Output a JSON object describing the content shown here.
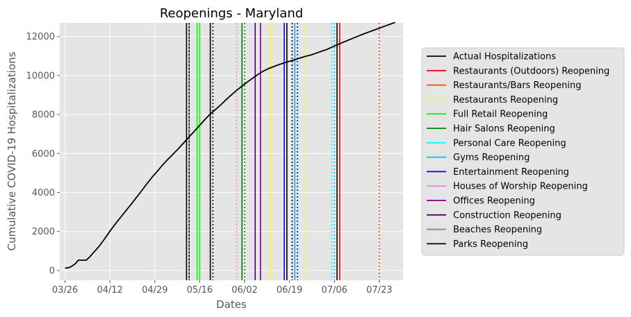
{
  "chart_data": {
    "type": "line",
    "title": "Reopenings - Maryland",
    "xlabel": "Dates",
    "ylabel": "Cumulative COVID-19 Hospitalizations",
    "x_ticks": [
      "03/26",
      "04/12",
      "04/29",
      "05/16",
      "06/02",
      "06/19",
      "07/06",
      "07/23"
    ],
    "y_ticks": [
      0,
      2000,
      4000,
      6000,
      8000,
      10000,
      12000
    ],
    "ylim": [
      -500,
      12700
    ],
    "xlim": [
      "03/24",
      "08/01"
    ],
    "grid": true,
    "legend_position": "outside-right",
    "series": [
      {
        "name": "Actual Hospitalizations",
        "color": "#000000",
        "x": [
          "03/26",
          "03/27",
          "03/28",
          "03/29",
          "03/30",
          "03/31",
          "04/01",
          "04/02",
          "04/03",
          "04/04",
          "04/05",
          "04/06",
          "04/07",
          "04/08",
          "04/09",
          "04/10",
          "04/11",
          "04/12",
          "04/14",
          "04/16",
          "04/18",
          "04/20",
          "04/22",
          "04/24",
          "04/26",
          "04/28",
          "04/30",
          "05/02",
          "05/04",
          "05/06",
          "05/08",
          "05/10",
          "05/12",
          "05/14",
          "05/16",
          "05/18",
          "05/20",
          "05/22",
          "05/24",
          "05/26",
          "05/28",
          "05/30",
          "06/01",
          "06/03",
          "06/05",
          "06/07",
          "06/09",
          "06/11",
          "06/13",
          "06/15",
          "06/17",
          "06/19",
          "06/21",
          "06/23",
          "06/25",
          "06/27",
          "06/29",
          "07/01",
          "07/03",
          "07/05",
          "07/07",
          "07/09",
          "07/11",
          "07/13",
          "07/15",
          "07/17",
          "07/19",
          "07/21",
          "07/23",
          "07/25",
          "07/27",
          "07/29"
        ],
        "y": [
          130,
          130,
          180,
          260,
          360,
          530,
          530,
          530,
          530,
          650,
          800,
          950,
          1100,
          1260,
          1440,
          1630,
          1820,
          2020,
          2380,
          2720,
          3060,
          3390,
          3740,
          4090,
          4450,
          4790,
          5100,
          5420,
          5710,
          5980,
          6260,
          6560,
          6850,
          7150,
          7450,
          7750,
          8030,
          8260,
          8500,
          8760,
          9010,
          9240,
          9460,
          9660,
          9860,
          10050,
          10220,
          10350,
          10460,
          10560,
          10650,
          10730,
          10810,
          10900,
          10980,
          11050,
          11140,
          11240,
          11330,
          11450,
          11570,
          11690,
          11800,
          11910,
          12020,
          12130,
          12230,
          12330,
          12430,
          12530,
          12630,
          12720
        ]
      }
    ],
    "reopenings": [
      {
        "name": "Restaurants (Outdoors) Reopening",
        "color": "#ff0000",
        "style": "solid",
        "dates": [
          "07/08"
        ]
      },
      {
        "name": "Restaurants/Bars Reopening",
        "color": "#ff4500",
        "style": "dotted",
        "dates": [
          "07/23"
        ]
      },
      {
        "name": "Restaurants Reopening",
        "color": "#ffff00",
        "style": "mixed",
        "dates": [
          "06/12",
          "06/25"
        ]
      },
      {
        "name": "Full Retail Reopening",
        "color": "#00ff00",
        "style": "solid",
        "dates": [
          "05/15",
          "05/16"
        ]
      },
      {
        "name": "Hair Salons Reopening",
        "color": "#008000",
        "style": "mixed",
        "dates": [
          "06/01",
          "06/02"
        ]
      },
      {
        "name": "Personal Care Reopening",
        "color": "#00ffff",
        "style": "dotted",
        "dates": [
          "06/20",
          "07/05"
        ]
      },
      {
        "name": "Gyms Reopening",
        "color": "#00bfff",
        "style": "mixed",
        "dates": [
          "06/21",
          "07/06"
        ]
      },
      {
        "name": "Entertainment Reopening",
        "color": "#0000ff",
        "style": "mixed",
        "dates": [
          "06/17",
          "06/22"
        ]
      },
      {
        "name": "Houses of Worship Reopening",
        "color": "#ee82ee",
        "style": "dotted",
        "dates": [
          "05/30"
        ]
      },
      {
        "name": "Offices Reopening",
        "color": "#800080",
        "style": "solid",
        "dates": [
          "06/08"
        ]
      },
      {
        "name": "Construction Reopening",
        "color": "#4b0082",
        "style": "solid",
        "dates": [
          "06/06"
        ]
      },
      {
        "name": "Beaches Reopening",
        "color": "#808080",
        "style": "solid",
        "dates": [
          "05/12"
        ]
      },
      {
        "name": "Parks Reopening",
        "color": "#000000",
        "style": "mixed",
        "dates": [
          "05/11",
          "05/12",
          "05/20",
          "05/21",
          "06/18",
          "06/20",
          "07/07"
        ]
      }
    ]
  }
}
